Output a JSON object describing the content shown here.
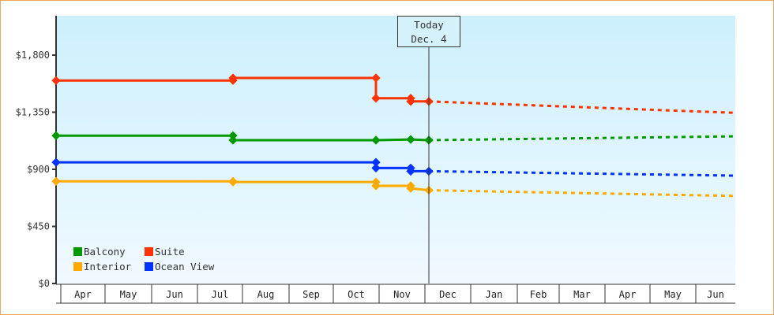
{
  "chart_data": {
    "type": "line",
    "title": "",
    "xlabel": "",
    "ylabel": "",
    "ylim": [
      0,
      2100
    ],
    "yticks": [
      "$0",
      "$450",
      "$900",
      "$1,350",
      "$1,800"
    ],
    "ytick_values": [
      0,
      450,
      900,
      1350,
      1800
    ],
    "categories": [
      "Apr",
      "May",
      "Jun",
      "Jul",
      "Aug",
      "Sep",
      "Oct",
      "Nov",
      "Dec",
      "Jan",
      "Feb",
      "Mar",
      "Apr",
      "May",
      "Jun"
    ],
    "annotation": {
      "line1": "Today",
      "line2": "Dec. 4"
    },
    "legend_position": "lower-left",
    "grid": false,
    "series": [
      {
        "name": "Suite",
        "color": "#ff3300",
        "historical": [
          [
            "Apr 1",
            1600
          ],
          [
            "Jul 15",
            1600
          ],
          [
            "Jul 15",
            1620
          ],
          [
            "Oct 25",
            1620
          ],
          [
            "Oct 25",
            1460
          ],
          [
            "Nov 20",
            1460
          ],
          [
            "Nov 20",
            1435
          ],
          [
            "Dec 4",
            1435
          ]
        ],
        "forecast": [
          [
            "Dec 4",
            1435
          ],
          [
            "Jun 30",
            1345
          ]
        ]
      },
      {
        "name": "Balcony",
        "color": "#009900",
        "historical": [
          [
            "Apr 1",
            1165
          ],
          [
            "Jul 15",
            1165
          ],
          [
            "Jul 15",
            1130
          ],
          [
            "Oct 25",
            1130
          ],
          [
            "Nov 20",
            1135
          ],
          [
            "Dec 4",
            1130
          ]
        ],
        "forecast": [
          [
            "Dec 4",
            1130
          ],
          [
            "Jun 30",
            1160
          ]
        ]
      },
      {
        "name": "Ocean View",
        "color": "#0033ff",
        "historical": [
          [
            "Apr 1",
            955
          ],
          [
            "Oct 25",
            955
          ],
          [
            "Oct 25",
            910
          ],
          [
            "Nov 20",
            910
          ],
          [
            "Nov 20",
            885
          ],
          [
            "Dec 4",
            885
          ]
        ],
        "forecast": [
          [
            "Dec 4",
            885
          ],
          [
            "Jun 30",
            850
          ]
        ]
      },
      {
        "name": "Interior",
        "color": "#ffaa00",
        "historical": [
          [
            "Apr 1",
            805
          ],
          [
            "Jul 15",
            805
          ],
          [
            "Jul 15",
            800
          ],
          [
            "Oct 25",
            800
          ],
          [
            "Oct 25",
            770
          ],
          [
            "Nov 20",
            770
          ],
          [
            "Nov 20",
            750
          ],
          [
            "Dec 4",
            735
          ]
        ],
        "forecast": [
          [
            "Dec 4",
            735
          ],
          [
            "Jun 30",
            690
          ]
        ]
      }
    ]
  },
  "legend": [
    {
      "label": "Balcony",
      "color": "#009900"
    },
    {
      "label": "Suite",
      "color": "#ff3300"
    },
    {
      "label": "Interior",
      "color": "#ffaa00"
    },
    {
      "label": "Ocean View",
      "color": "#0033ff"
    }
  ],
  "today": {
    "line1": "Today",
    "line2": "Dec. 4"
  }
}
